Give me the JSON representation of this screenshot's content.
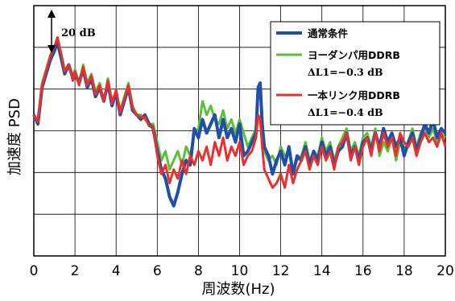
{
  "chart_data": {
    "type": "line",
    "xlabel": "周波数(Hz)",
    "ylabel": "加速度 PSD",
    "xlim": [
      0,
      20
    ],
    "x_ticks": [
      "0",
      "2",
      "4",
      "6",
      "8",
      "10",
      "12",
      "14",
      "16",
      "18",
      "20"
    ],
    "grid": true,
    "scale_annotation": "20 dB",
    "legend_position": "top-right",
    "series": [
      {
        "name": "通常条件",
        "note": "",
        "color": "#1f4fa8",
        "x": [
          0,
          0.2,
          0.4,
          0.6,
          0.8,
          1.0,
          1.15,
          1.3,
          1.5,
          1.7,
          1.9,
          2.0,
          2.2,
          2.4,
          2.6,
          2.8,
          3.0,
          3.2,
          3.4,
          3.6,
          3.8,
          4.0,
          4.2,
          4.4,
          4.6,
          4.8,
          5.0,
          5.2,
          5.4,
          5.6,
          5.8,
          6.0,
          6.2,
          6.4,
          6.6,
          6.8,
          7.0,
          7.2,
          7.4,
          7.6,
          7.8,
          8.0,
          8.2,
          8.4,
          8.6,
          8.8,
          9.0,
          9.2,
          9.4,
          9.6,
          9.8,
          10.0,
          10.2,
          10.4,
          10.6,
          10.8,
          10.9,
          11.0,
          11.1,
          11.2,
          11.4,
          11.6,
          11.8,
          12.0,
          12.2,
          12.4,
          12.6,
          12.8,
          13.0,
          13.2,
          13.4,
          13.6,
          13.8,
          14.0,
          14.2,
          14.4,
          14.6,
          14.8,
          15.0,
          15.2,
          15.4,
          15.6,
          15.8,
          16.0,
          16.2,
          16.4,
          16.6,
          16.8,
          17.0,
          17.2,
          17.4,
          17.6,
          17.8,
          18.0,
          18.2,
          18.4,
          18.6,
          18.8,
          19.0,
          19.2,
          19.4,
          19.6,
          19.8,
          20.0
        ],
        "y": [
          12,
          8,
          24,
          30,
          36,
          40,
          44,
          38,
          30,
          34,
          28,
          30,
          26,
          32,
          24,
          28,
          20,
          24,
          18,
          26,
          16,
          22,
          12,
          18,
          24,
          14,
          12,
          10,
          12,
          8,
          6,
          -4,
          -12,
          -16,
          -24,
          -28,
          -22,
          -14,
          -8,
          -10,
          6,
          2,
          10,
          4,
          8,
          12,
          2,
          10,
          2,
          6,
          0,
          8,
          -6,
          -4,
          0,
          4,
          24,
          26,
          8,
          -2,
          -6,
          -14,
          -8,
          -4,
          -10,
          -2,
          -14,
          -6,
          -8,
          -2,
          -10,
          -4,
          -8,
          0,
          -6,
          -2,
          -10,
          -4,
          -2,
          4,
          -6,
          -2,
          -8,
          0,
          2,
          -4,
          4,
          -2,
          6,
          0,
          4,
          -2,
          2,
          -6,
          0,
          4,
          -4,
          2,
          8,
          4,
          10,
          2,
          6,
          4
        ]
      },
      {
        "name": "ヨーダンパ用DDRB",
        "note": "ΔL1=−0.3 dB",
        "color": "#5cbf3a",
        "x": [
          0,
          0.2,
          0.4,
          0.6,
          0.8,
          1.0,
          1.15,
          1.3,
          1.5,
          1.7,
          1.9,
          2.0,
          2.2,
          2.4,
          2.6,
          2.8,
          3.0,
          3.2,
          3.4,
          3.6,
          3.8,
          4.0,
          4.2,
          4.4,
          4.6,
          4.8,
          5.0,
          5.2,
          5.4,
          5.6,
          5.8,
          6.0,
          6.2,
          6.4,
          6.6,
          6.8,
          7.0,
          7.2,
          7.4,
          7.6,
          7.8,
          8.0,
          8.2,
          8.4,
          8.6,
          8.8,
          9.0,
          9.2,
          9.4,
          9.6,
          9.8,
          10.0,
          10.2,
          10.4,
          10.6,
          10.8,
          10.9,
          11.0,
          11.1,
          11.2,
          11.4,
          11.6,
          11.8,
          12.0,
          12.2,
          12.4,
          12.6,
          12.8,
          13.0,
          13.2,
          13.4,
          13.6,
          13.8,
          14.0,
          14.2,
          14.4,
          14.6,
          14.8,
          15.0,
          15.2,
          15.4,
          15.6,
          15.8,
          16.0,
          16.2,
          16.4,
          16.6,
          16.8,
          17.0,
          17.2,
          17.4,
          17.6,
          17.8,
          18.0,
          18.2,
          18.4,
          18.6,
          18.8,
          19.0,
          19.2,
          19.4,
          19.6,
          19.8,
          20.0
        ],
        "y": [
          10,
          10,
          26,
          32,
          38,
          42,
          46,
          40,
          32,
          34,
          28,
          32,
          26,
          34,
          26,
          30,
          22,
          26,
          18,
          28,
          18,
          22,
          14,
          20,
          26,
          16,
          12,
          12,
          10,
          8,
          8,
          0,
          -8,
          -4,
          -12,
          -8,
          -4,
          -10,
          -2,
          -6,
          4,
          6,
          18,
          12,
          16,
          10,
          8,
          14,
          6,
          10,
          4,
          10,
          4,
          -2,
          2,
          6,
          12,
          10,
          2,
          -4,
          -8,
          -6,
          -10,
          -2,
          -6,
          -4,
          -12,
          -8,
          -6,
          0,
          -8,
          -4,
          -6,
          2,
          -4,
          0,
          -8,
          -2,
          2,
          6,
          -4,
          0,
          -6,
          2,
          4,
          -2,
          6,
          -6,
          0,
          -4,
          2,
          -8,
          0,
          -4,
          0,
          6,
          -2,
          4,
          6,
          2,
          6,
          0,
          4,
          2
        ]
      },
      {
        "name": "一本リンク用DDRB",
        "note": "ΔL1=−0.4 dB",
        "color": "#e8302e",
        "x": [
          0,
          0.2,
          0.4,
          0.6,
          0.8,
          1.0,
          1.15,
          1.3,
          1.5,
          1.7,
          1.9,
          2.0,
          2.2,
          2.4,
          2.6,
          2.8,
          3.0,
          3.2,
          3.4,
          3.6,
          3.8,
          4.0,
          4.2,
          4.4,
          4.6,
          4.8,
          5.0,
          5.2,
          5.4,
          5.6,
          5.8,
          6.0,
          6.2,
          6.4,
          6.6,
          6.8,
          7.0,
          7.2,
          7.4,
          7.6,
          7.8,
          8.0,
          8.2,
          8.4,
          8.6,
          8.8,
          9.0,
          9.2,
          9.4,
          9.6,
          9.8,
          10.0,
          10.2,
          10.4,
          10.6,
          10.8,
          10.9,
          11.0,
          11.1,
          11.2,
          11.4,
          11.6,
          11.8,
          12.0,
          12.2,
          12.4,
          12.6,
          12.8,
          13.0,
          13.2,
          13.4,
          13.6,
          13.8,
          14.0,
          14.2,
          14.4,
          14.6,
          14.8,
          15.0,
          15.2,
          15.4,
          15.6,
          15.8,
          16.0,
          16.2,
          16.4,
          16.6,
          16.8,
          17.0,
          17.2,
          17.4,
          17.6,
          17.8,
          18.0,
          18.2,
          18.4,
          18.6,
          18.8,
          19.0,
          19.2,
          19.4,
          19.6,
          19.8,
          20.0
        ],
        "y": [
          12,
          9,
          25,
          31,
          38,
          42,
          46,
          40,
          31,
          34,
          27,
          31,
          25,
          33,
          25,
          29,
          21,
          25,
          18,
          27,
          17,
          23,
          13,
          19,
          25,
          15,
          12,
          11,
          11,
          7,
          7,
          -6,
          -14,
          -10,
          -18,
          -12,
          -16,
          -8,
          -14,
          -6,
          -10,
          -4,
          -8,
          -2,
          -10,
          0,
          -6,
          2,
          -8,
          -2,
          -6,
          0,
          -10,
          -6,
          -4,
          2,
          12,
          10,
          -2,
          -12,
          -16,
          -20,
          -18,
          -14,
          -20,
          -10,
          -18,
          -12,
          -8,
          -4,
          -12,
          -6,
          -10,
          -2,
          -8,
          -4,
          -12,
          -2,
          0,
          4,
          -8,
          -2,
          -10,
          -2,
          2,
          -6,
          4,
          -4,
          4,
          -2,
          2,
          -6,
          4,
          0,
          -2,
          2,
          -6,
          0,
          4,
          0,
          2,
          -2,
          4,
          -2
        ]
      }
    ]
  }
}
